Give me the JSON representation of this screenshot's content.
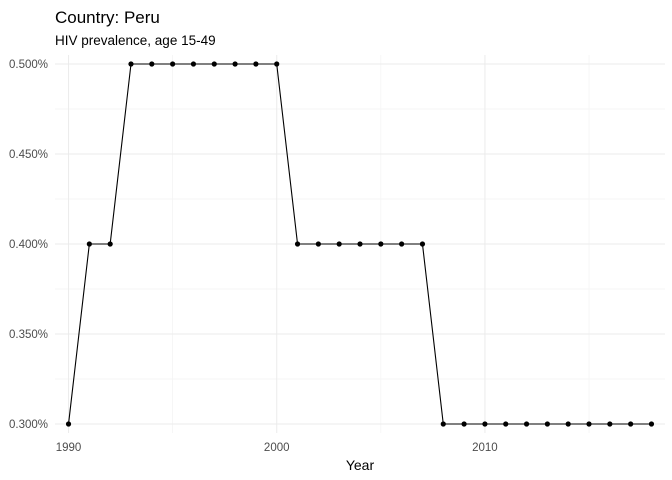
{
  "chart_data": {
    "type": "line",
    "title": "Country: Peru",
    "subtitle": "HIV prevalence, age 15-49",
    "xlabel": "Year",
    "ylabel": "",
    "x": [
      1990,
      1991,
      1992,
      1993,
      1994,
      1995,
      1996,
      1997,
      1998,
      1999,
      2000,
      2001,
      2002,
      2003,
      2004,
      2005,
      2006,
      2007,
      2008,
      2009,
      2010,
      2011,
      2012,
      2013,
      2014,
      2015,
      2016,
      2017,
      2018
    ],
    "series": [
      {
        "values": [
          0.3,
          0.4,
          0.4,
          0.5,
          0.5,
          0.5,
          0.5,
          0.5,
          0.5,
          0.5,
          0.5,
          0.4,
          0.4,
          0.4,
          0.4,
          0.4,
          0.4,
          0.4,
          0.3,
          0.3,
          0.3,
          0.3,
          0.3,
          0.3,
          0.3,
          0.3,
          0.3,
          0.3,
          0.3
        ]
      }
    ],
    "xlim": [
      1989.35,
      2018.65
    ],
    "ylim": [
      0.295,
      0.505
    ],
    "x_ticks": [
      1990,
      2000,
      2010
    ],
    "x_tick_labels": [
      "1990",
      "2000",
      "2010"
    ],
    "x_minor_ticks": [
      1995,
      2005,
      2015
    ],
    "y_ticks": [
      0.3,
      0.35,
      0.4,
      0.45,
      0.5
    ],
    "y_tick_labels": [
      "0.300%",
      "0.350%",
      "0.400%",
      "0.450%",
      "0.500%"
    ],
    "y_minor_ticks": [
      0.325,
      0.375,
      0.425,
      0.475
    ],
    "grid": true,
    "colors": {
      "line": "#000000",
      "points": "#000000",
      "grid": "#ebebeb",
      "tick_text": "#4d4d4d"
    }
  }
}
